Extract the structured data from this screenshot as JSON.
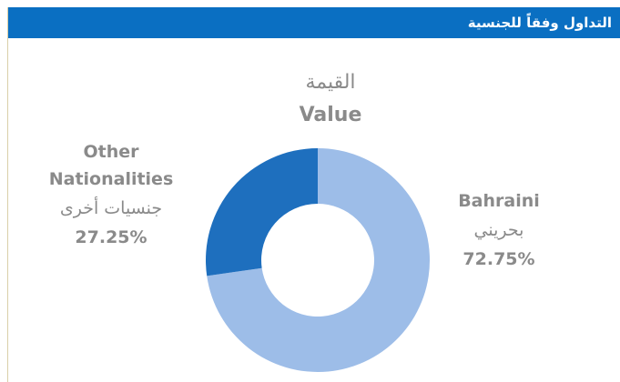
{
  "header": {
    "title": "التداول وفقاً للجنسية"
  },
  "chart_data": {
    "type": "pie",
    "donut": true,
    "title": "القيمة",
    "subtitle": "Value",
    "categories": [
      "Bahraini",
      "Other Nationalities"
    ],
    "categories_ar": [
      "بحريني",
      "جنسيات أخرى"
    ],
    "values": [
      72.75,
      27.25
    ],
    "value_labels": [
      "72.75%",
      "27.25%"
    ],
    "colors": [
      "#9dbde8",
      "#1e6fbe"
    ]
  }
}
